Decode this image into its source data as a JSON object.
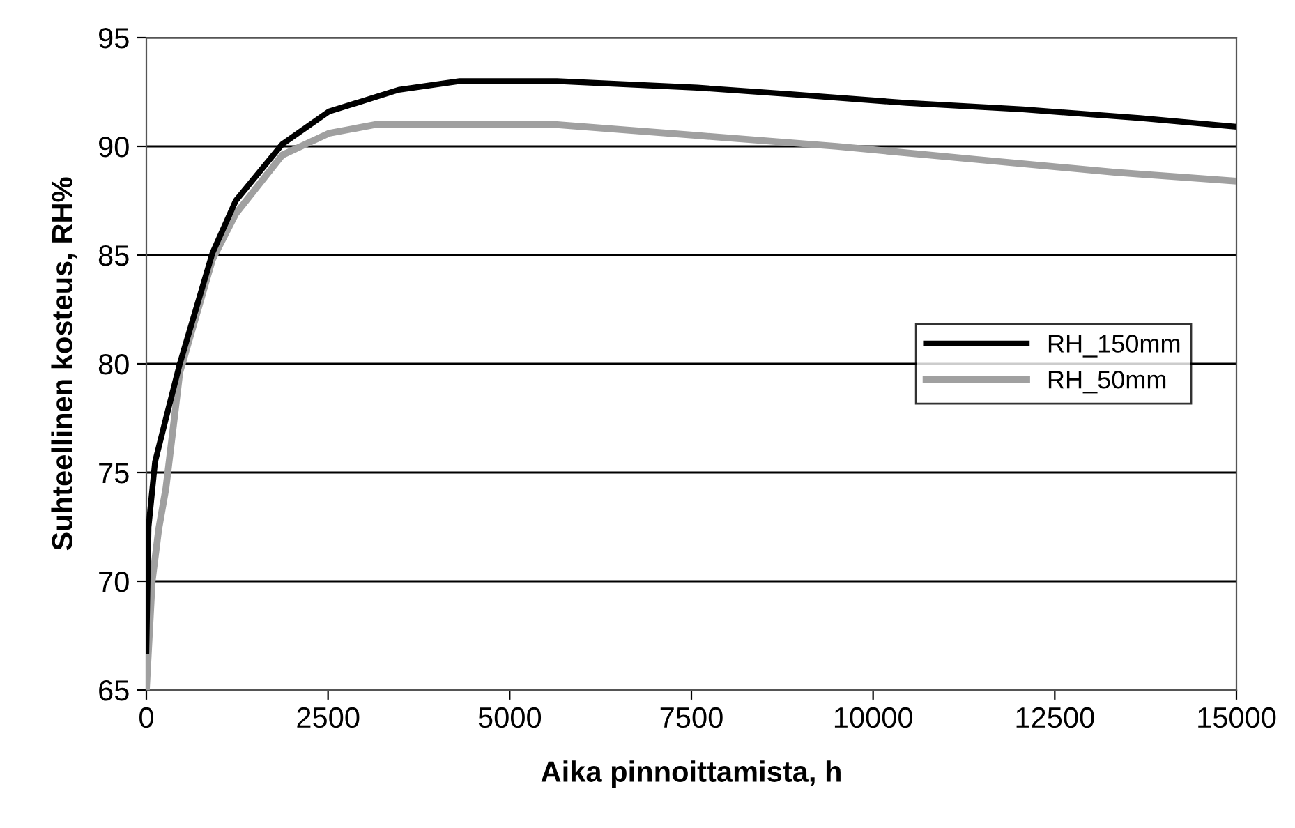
{
  "chart_data": {
    "type": "line",
    "xlabel": "Aika pinnoittamista, h",
    "ylabel": "Suhteellinen kosteus, RH%",
    "xlim": [
      0,
      15000
    ],
    "xticks": [
      0,
      2500,
      5000,
      7500,
      10000,
      12500,
      15000
    ],
    "ylim": [
      65,
      95
    ],
    "yticks": [
      65,
      70,
      75,
      80,
      85,
      90,
      95
    ],
    "grid": "y",
    "legend": "right",
    "marker": "none",
    "line_style": "solid",
    "series": [
      {
        "name": "RH_150mm",
        "color": "#000000",
        "x": [
          0,
          30,
          120,
          270,
          460,
          910,
          1230,
          1870,
          2510,
          3470,
          4310,
          5650,
          7580,
          8860,
          10460,
          12060,
          13670,
          15000
        ],
        "values": [
          66.8,
          72.5,
          75.5,
          77.5,
          80.0,
          85.1,
          87.5,
          90.1,
          91.6,
          92.6,
          93.0,
          93.0,
          92.7,
          92.4,
          92.0,
          91.7,
          91.3,
          90.9
        ]
      },
      {
        "name": "RH_50mm",
        "color": "#a0a0a0",
        "x": [
          0,
          80,
          170,
          270,
          460,
          910,
          1230,
          1870,
          2510,
          3150,
          5650,
          7580,
          9500,
          11420,
          13350,
          15000
        ],
        "values": [
          65.0,
          70.0,
          72.4,
          74.3,
          79.6,
          84.8,
          86.9,
          89.6,
          90.6,
          91.0,
          91.0,
          90.5,
          90.0,
          89.4,
          88.8,
          88.4
        ]
      }
    ]
  }
}
